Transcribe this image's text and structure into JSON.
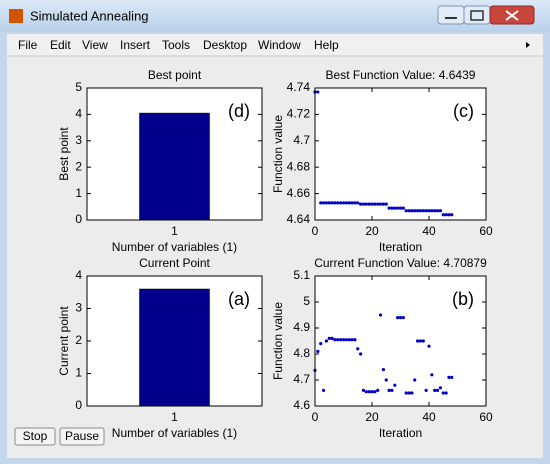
{
  "window": {
    "title": "Simulated Annealing"
  },
  "menu": [
    "File",
    "Edit",
    "View",
    "Insert",
    "Tools",
    "Desktop",
    "Window",
    "Help"
  ],
  "buttons": [
    "Stop",
    "Pause"
  ],
  "chart_data": [
    {
      "type": "bar",
      "title": "Best point",
      "xlabel": "Number of variables (1)",
      "ylabel": "Best point",
      "annotation": "(d)",
      "color": "#00008b",
      "categories": [
        "1"
      ],
      "values": [
        4.05
      ],
      "ylim": [
        0,
        5
      ],
      "yticks": [
        0,
        1,
        2,
        3,
        4,
        5
      ]
    },
    {
      "type": "scatter",
      "title": "Best Function Value: 4.6439",
      "xlabel": "Iteration",
      "ylabel": "Function value",
      "annotation": "(c)",
      "color": "#0000c8",
      "x": [
        0,
        1,
        2,
        3,
        4,
        5,
        6,
        7,
        8,
        9,
        10,
        11,
        12,
        13,
        14,
        15,
        16,
        17,
        18,
        19,
        20,
        21,
        22,
        23,
        24,
        25,
        26,
        27,
        28,
        29,
        30,
        31,
        32,
        33,
        34,
        35,
        36,
        37,
        38,
        39,
        40,
        41,
        42,
        43,
        44,
        45,
        46,
        47,
        48
      ],
      "values": [
        4.737,
        4.737,
        4.653,
        4.653,
        4.653,
        4.653,
        4.653,
        4.653,
        4.653,
        4.653,
        4.653,
        4.653,
        4.653,
        4.653,
        4.653,
        4.653,
        4.652,
        4.652,
        4.652,
        4.652,
        4.652,
        4.652,
        4.652,
        4.652,
        4.652,
        4.652,
        4.649,
        4.649,
        4.649,
        4.649,
        4.649,
        4.649,
        4.647,
        4.647,
        4.647,
        4.647,
        4.647,
        4.647,
        4.647,
        4.647,
        4.647,
        4.647,
        4.647,
        4.647,
        4.647,
        4.644,
        4.644,
        4.644,
        4.644
      ],
      "xlim": [
        0,
        60
      ],
      "ylim": [
        4.64,
        4.74
      ],
      "xticks": [
        0,
        20,
        40,
        60
      ],
      "yticks": [
        4.64,
        4.66,
        4.68,
        4.7,
        4.72,
        4.74
      ]
    },
    {
      "type": "bar",
      "title": "Current Point",
      "xlabel": "Number of variables (1)",
      "ylabel": "Current point",
      "annotation": "(a)",
      "color": "#00008b",
      "categories": [
        "1"
      ],
      "values": [
        3.6
      ],
      "ylim": [
        0,
        4
      ],
      "yticks": [
        0,
        1,
        2,
        3,
        4
      ]
    },
    {
      "type": "scatter",
      "title": "Current Function Value: 4.70879",
      "xlabel": "Iteration",
      "ylabel": "Function value",
      "annotation": "(b)",
      "color": "#0000c8",
      "x": [
        0,
        1,
        2,
        3,
        4,
        5,
        6,
        7,
        8,
        9,
        10,
        11,
        12,
        13,
        14,
        15,
        16,
        17,
        18,
        19,
        20,
        21,
        22,
        23,
        24,
        25,
        26,
        27,
        28,
        29,
        30,
        31,
        32,
        33,
        34,
        35,
        36,
        37,
        38,
        39,
        40,
        41,
        42,
        43,
        44,
        45,
        46,
        47,
        48
      ],
      "values": [
        4.737,
        4.81,
        4.84,
        4.66,
        4.85,
        4.86,
        4.86,
        4.855,
        4.855,
        4.855,
        4.855,
        4.855,
        4.855,
        4.855,
        4.855,
        4.82,
        4.8,
        4.66,
        4.655,
        4.655,
        4.655,
        4.655,
        4.66,
        4.95,
        4.74,
        4.7,
        4.66,
        4.66,
        4.68,
        4.94,
        4.94,
        4.94,
        4.65,
        4.65,
        4.65,
        4.7,
        4.85,
        4.85,
        4.85,
        4.66,
        4.83,
        4.72,
        4.66,
        4.66,
        4.67,
        4.65,
        4.65,
        4.71,
        4.71
      ],
      "xlim": [
        0,
        60
      ],
      "ylim": [
        4.6,
        5.1
      ],
      "xticks": [
        0,
        20,
        40,
        60
      ],
      "yticks": [
        4.6,
        4.7,
        4.8,
        4.9,
        5,
        5.1
      ]
    }
  ]
}
